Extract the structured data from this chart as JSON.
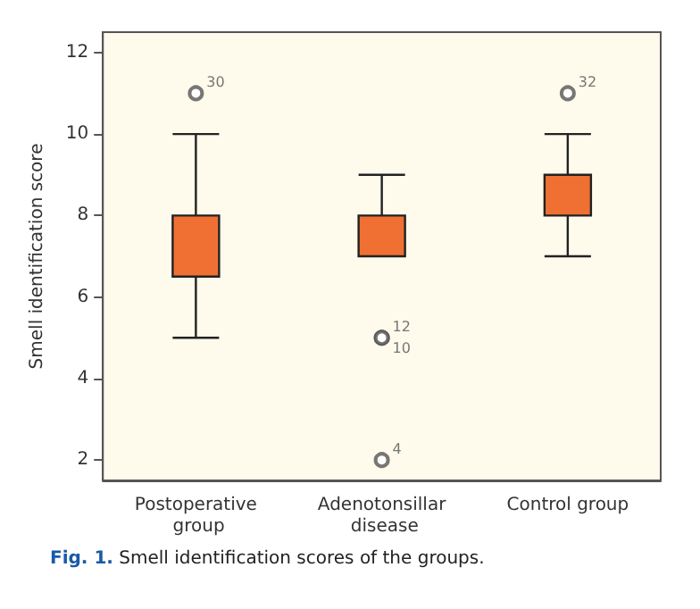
{
  "chart_data": {
    "type": "box",
    "ylabel": "Smell identification score",
    "categories": [
      "Postoperative group",
      "Adenotonsillar disease",
      "Control group"
    ],
    "boxes": [
      {
        "low": 5,
        "q1": 6.5,
        "median": 8,
        "q3": 8,
        "high": 10,
        "outliers": [
          11
        ]
      },
      {
        "low": 7,
        "q1": 7,
        "median": 8,
        "q3": 8,
        "high": 9,
        "outliers": [
          5,
          5,
          2
        ]
      },
      {
        "low": 7,
        "q1": 8,
        "median": 9,
        "q3": 9,
        "high": 10,
        "outliers": [
          11
        ]
      }
    ],
    "color": "#f07033",
    "ylim": [
      1.5,
      12.5
    ],
    "yticks": [
      2,
      4,
      6,
      8,
      10,
      12
    ],
    "grid": false,
    "annotations": [
      "30",
      "12",
      "10",
      "4",
      "32",
      "Fig. 1. Smell identification scores of the groups."
    ]
  }
}
